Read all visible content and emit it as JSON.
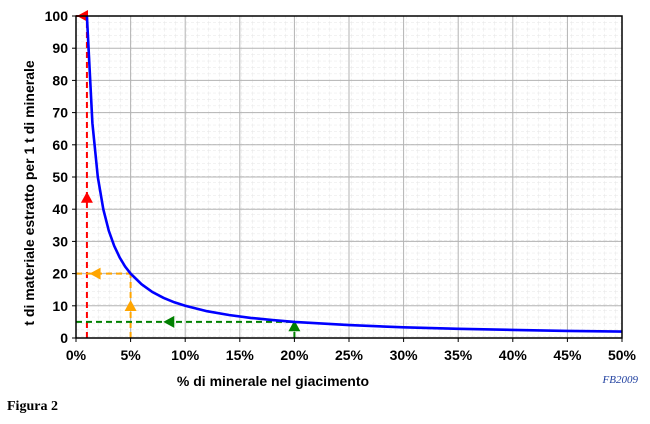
{
  "caption": "Figura 2",
  "chart_data": {
    "type": "line",
    "xlabel": "% di minerale nel giacimento",
    "ylabel": "t di materiale estratto per 1 t di minerale",
    "credit": "FB2009",
    "xlim": [
      0,
      50
    ],
    "ylim": [
      0,
      100
    ],
    "xticks": [
      0,
      5,
      10,
      15,
      20,
      25,
      30,
      35,
      40,
      45,
      50
    ],
    "xtick_labels": [
      "0%",
      "5%",
      "10%",
      "15%",
      "20%",
      "25%",
      "30%",
      "35%",
      "40%",
      "45%",
      "50%"
    ],
    "yticks": [
      0,
      10,
      20,
      30,
      40,
      50,
      60,
      70,
      80,
      90,
      100
    ],
    "ytick_labels": [
      "0",
      "10",
      "20",
      "30",
      "40",
      "50",
      "60",
      "70",
      "80",
      "90",
      "100"
    ],
    "grid": true,
    "series": [
      {
        "color": "#0000ff",
        "x": [
          1,
          1.5,
          2,
          2.5,
          3,
          3.5,
          4,
          4.5,
          5,
          6,
          7,
          8,
          9,
          10,
          12,
          14,
          16,
          18,
          20,
          25,
          30,
          35,
          40,
          45,
          50
        ],
        "y": [
          100,
          66.7,
          50,
          40,
          33.3,
          28.6,
          25,
          22.2,
          20,
          16.7,
          14.3,
          12.5,
          11.1,
          10,
          8.33,
          7.14,
          6.25,
          5.56,
          5,
          4,
          3.33,
          2.86,
          2.5,
          2.22,
          2
        ]
      }
    ],
    "annotations": [
      {
        "color": "#ff0000",
        "x": 1,
        "y": 100
      },
      {
        "color": "#ffa500",
        "x": 5,
        "y": 20
      },
      {
        "color": "#008000",
        "x": 20,
        "y": 5
      }
    ]
  }
}
